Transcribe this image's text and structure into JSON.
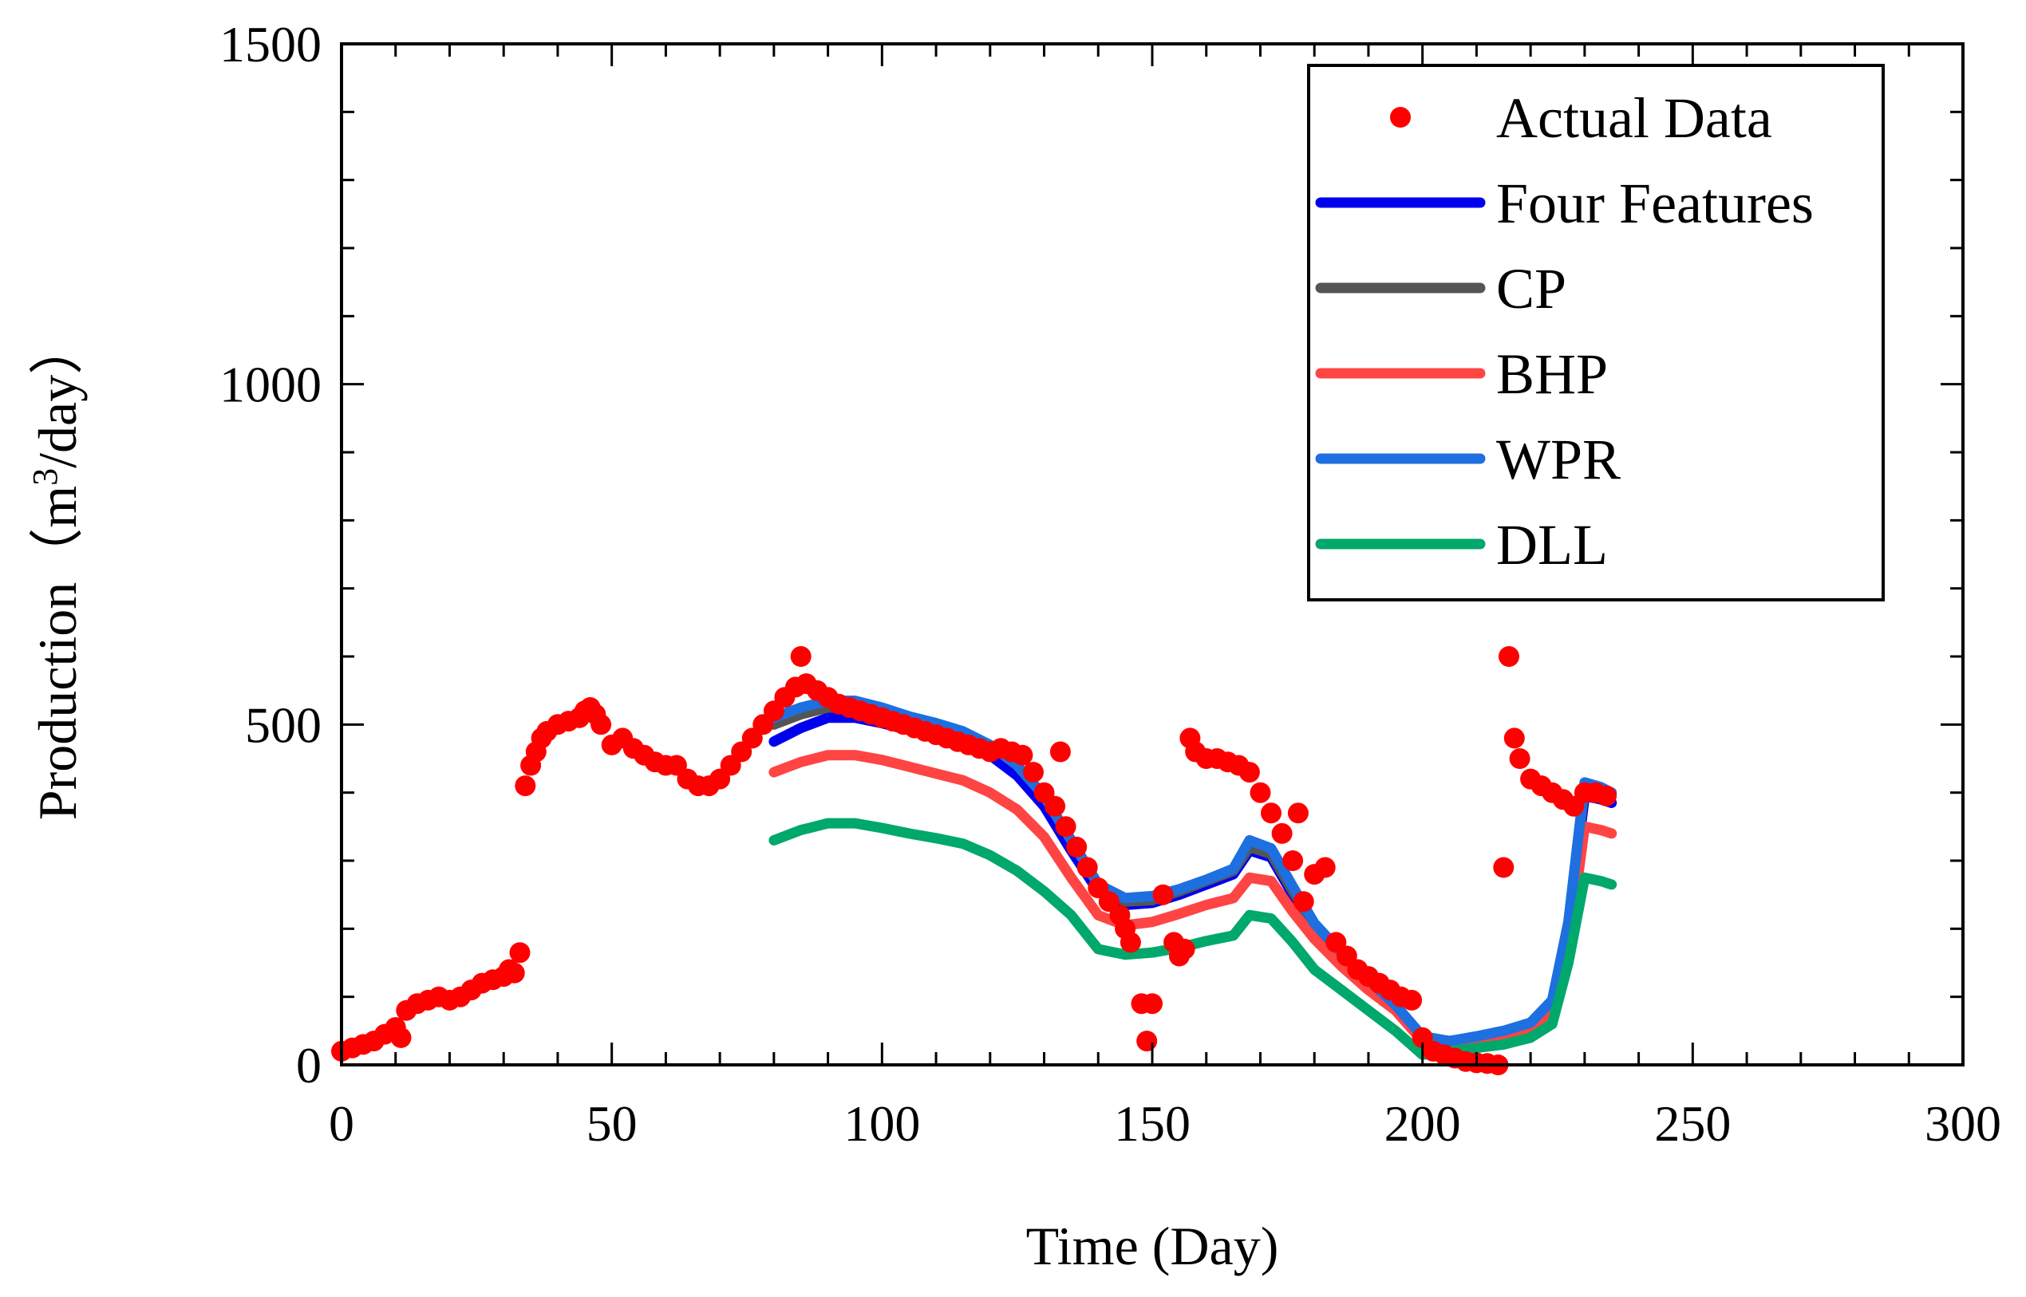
{
  "chart_data": {
    "type": "line",
    "title": "",
    "xlabel": "Time (Day)",
    "ylabel_prefix": "Production（m",
    "ylabel_sup": "3",
    "ylabel_suffix": "/day）",
    "xlim": [
      0,
      300
    ],
    "ylim": [
      0,
      1500
    ],
    "x_ticks": [
      0,
      50,
      100,
      150,
      200,
      250,
      300
    ],
    "y_ticks": [
      0,
      500,
      1000,
      1500
    ],
    "x_tick_labels": [
      "0",
      "50",
      "100",
      "150",
      "200",
      "250",
      "300"
    ],
    "y_tick_labels": [
      "0",
      "500",
      "1000",
      "1500"
    ],
    "grid": false,
    "legend_position": "top-right",
    "legend": [
      "Actual Data",
      "Four Features",
      "CP",
      "BHP",
      "WPR",
      "DLL"
    ],
    "series": [
      {
        "name": "Actual Data",
        "kind": "scatter",
        "color": "#ff0000",
        "x": [
          0,
          2,
          4,
          6,
          8,
          10,
          11,
          12,
          14,
          16,
          18,
          20,
          22,
          24,
          26,
          28,
          30,
          31,
          32,
          33,
          34,
          35,
          36,
          37,
          38,
          40,
          42,
          44,
          45,
          46,
          47,
          48,
          50,
          52,
          54,
          56,
          58,
          60,
          62,
          64,
          66,
          68,
          70,
          72,
          74,
          76,
          78,
          80,
          82,
          84,
          85,
          86,
          88,
          90,
          92,
          94,
          96,
          98,
          100,
          102,
          104,
          106,
          108,
          110,
          112,
          114,
          116,
          118,
          120,
          122,
          124,
          126,
          128,
          130,
          132,
          133,
          134,
          136,
          138,
          140,
          142,
          144,
          145,
          146,
          148,
          149,
          150,
          152,
          154,
          155,
          156,
          157,
          158,
          160,
          162,
          164,
          166,
          168,
          170,
          172,
          174,
          176,
          177,
          178,
          180,
          182,
          184,
          186,
          188,
          190,
          192,
          194,
          196,
          198,
          200,
          202,
          204,
          206,
          208,
          210,
          212,
          214,
          215,
          216,
          217,
          218,
          220,
          222,
          224,
          226,
          228,
          230,
          232,
          234
        ],
        "y": [
          20,
          25,
          30,
          35,
          45,
          55,
          40,
          80,
          90,
          95,
          100,
          95,
          100,
          110,
          120,
          125,
          130,
          140,
          135,
          165,
          410,
          440,
          460,
          480,
          490,
          500,
          505,
          510,
          520,
          525,
          515,
          500,
          470,
          480,
          465,
          455,
          445,
          440,
          440,
          420,
          410,
          410,
          420,
          440,
          460,
          480,
          500,
          520,
          540,
          555,
          600,
          560,
          550,
          540,
          530,
          525,
          520,
          515,
          510,
          505,
          500,
          495,
          490,
          485,
          480,
          475,
          470,
          465,
          460,
          465,
          460,
          455,
          430,
          400,
          380,
          460,
          350,
          320,
          290,
          260,
          240,
          220,
          200,
          180,
          90,
          35,
          90,
          250,
          180,
          160,
          170,
          480,
          460,
          450,
          450,
          445,
          440,
          430,
          400,
          370,
          340,
          300,
          370,
          240,
          280,
          290,
          180,
          160,
          140,
          130,
          120,
          110,
          100,
          95,
          40,
          20,
          15,
          10,
          5,
          3,
          2,
          0,
          290,
          600,
          480,
          450,
          420,
          410,
          400,
          390,
          380,
          400,
          400,
          395
        ]
      },
      {
        "name": "Four Features",
        "kind": "line",
        "color": "#0000ee",
        "x": [
          80,
          85,
          90,
          95,
          100,
          105,
          110,
          115,
          120,
          125,
          130,
          135,
          140,
          145,
          150,
          155,
          160,
          165,
          168,
          172,
          176,
          180,
          185,
          190,
          195,
          200,
          205,
          210,
          215,
          220,
          224,
          227,
          230,
          233,
          235
        ],
        "y": [
          475,
          495,
          510,
          510,
          502,
          492,
          482,
          472,
          455,
          425,
          380,
          315,
          255,
          235,
          238,
          250,
          265,
          280,
          315,
          305,
          250,
          200,
          160,
          120,
          85,
          40,
          35,
          40,
          48,
          60,
          90,
          200,
          395,
          390,
          385
        ]
      },
      {
        "name": "CP",
        "kind": "line",
        "color": "#555555",
        "x": [
          80,
          85,
          90,
          95,
          100,
          105,
          110,
          115,
          120,
          125,
          130,
          135,
          140,
          145,
          150,
          155,
          160,
          165,
          168,
          172,
          176,
          180,
          185,
          190,
          195,
          200,
          205,
          210,
          215,
          220,
          224,
          227,
          230,
          233,
          235
        ],
        "y": [
          500,
          515,
          525,
          525,
          515,
          505,
          495,
          485,
          470,
          440,
          395,
          330,
          265,
          240,
          242,
          255,
          270,
          285,
          320,
          310,
          255,
          205,
          162,
          120,
          85,
          40,
          35,
          40,
          48,
          60,
          90,
          205,
          408,
          402,
          398
        ]
      },
      {
        "name": "BHP",
        "kind": "line",
        "color": "#ff4444",
        "x": [
          80,
          85,
          90,
          95,
          100,
          105,
          110,
          115,
          120,
          125,
          130,
          135,
          140,
          145,
          150,
          155,
          160,
          165,
          168,
          172,
          176,
          180,
          185,
          190,
          195,
          200,
          205,
          210,
          215,
          220,
          224,
          227,
          230,
          233,
          235
        ],
        "y": [
          430,
          445,
          455,
          455,
          448,
          438,
          428,
          418,
          400,
          375,
          335,
          275,
          220,
          205,
          210,
          222,
          235,
          245,
          275,
          270,
          225,
          185,
          145,
          110,
          80,
          35,
          30,
          35,
          40,
          50,
          75,
          170,
          350,
          345,
          340
        ]
      },
      {
        "name": "WPR",
        "kind": "line",
        "color": "#1e6fe0",
        "x": [
          80,
          85,
          90,
          95,
          100,
          105,
          110,
          115,
          120,
          125,
          130,
          135,
          140,
          145,
          150,
          155,
          160,
          165,
          168,
          172,
          176,
          180,
          185,
          190,
          195,
          200,
          205,
          210,
          215,
          220,
          224,
          227,
          230,
          233,
          235
        ],
        "y": [
          510,
          525,
          535,
          535,
          525,
          512,
          502,
          490,
          470,
          440,
          395,
          330,
          265,
          245,
          248,
          258,
          272,
          288,
          330,
          318,
          262,
          208,
          165,
          125,
          88,
          42,
          35,
          42,
          50,
          62,
          95,
          210,
          415,
          408,
          400
        ]
      },
      {
        "name": "DLL",
        "kind": "line",
        "color": "#00a86b",
        "x": [
          80,
          85,
          90,
          95,
          100,
          105,
          110,
          115,
          120,
          125,
          130,
          135,
          140,
          145,
          150,
          155,
          160,
          165,
          168,
          172,
          176,
          180,
          185,
          190,
          195,
          200,
          205,
          210,
          215,
          220,
          224,
          227,
          230,
          233,
          235
        ],
        "y": [
          330,
          345,
          355,
          355,
          348,
          340,
          333,
          325,
          308,
          285,
          255,
          220,
          170,
          162,
          165,
          172,
          182,
          190,
          220,
          215,
          180,
          140,
          110,
          80,
          50,
          15,
          20,
          25,
          30,
          40,
          60,
          150,
          275,
          270,
          265
        ]
      }
    ]
  }
}
